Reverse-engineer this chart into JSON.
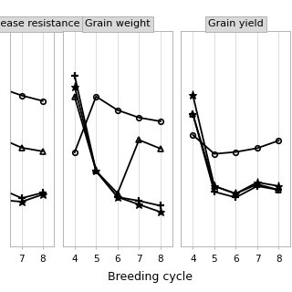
{
  "bg_color": "#FFFFFF",
  "grid_color": "#DDDDDD",
  "line_color": "#000000",
  "title_bg": "#D9D9D9",
  "xlabel": "Breeding cycle",
  "xlabel_fontsize": 9,
  "tick_fontsize": 7.5,
  "title_fontsize": 8,
  "panels": [
    {
      "title": "Disease resistance",
      "xticks": [
        7,
        8
      ],
      "xlim": [
        6.45,
        8.55
      ],
      "ylim": [
        0.28,
        0.88
      ],
      "series": {
        "circle": {
          "x": [
            6,
            7,
            8
          ],
          "y": [
            0.72,
            0.7,
            0.685
          ]
        },
        "triangle": {
          "x": [
            6,
            7,
            8
          ],
          "y": [
            0.58,
            0.555,
            0.545
          ]
        },
        "plus": {
          "x": [
            6,
            7,
            8
          ],
          "y": [
            0.44,
            0.415,
            0.43
          ]
        },
        "star": {
          "x": [
            6,
            7,
            8
          ],
          "y": [
            0.41,
            0.405,
            0.425
          ]
        }
      }
    },
    {
      "title": "Grain weight",
      "xticks": [
        4,
        5,
        6,
        7,
        8
      ],
      "xlim": [
        3.45,
        8.55
      ],
      "ylim": [
        0.13,
        1.0
      ],
      "series": {
        "circle": {
          "x": [
            4,
            5,
            6,
            7,
            8
          ],
          "y": [
            0.51,
            0.735,
            0.68,
            0.65,
            0.635
          ]
        },
        "triangle": {
          "x": [
            4,
            5,
            6,
            7,
            8
          ],
          "y": [
            0.735,
            0.435,
            0.345,
            0.56,
            0.525
          ]
        },
        "plus": {
          "x": [
            4,
            5,
            6,
            7,
            8
          ],
          "y": [
            0.82,
            0.435,
            0.33,
            0.315,
            0.295
          ]
        },
        "star": {
          "x": [
            4,
            5,
            6,
            7,
            8
          ],
          "y": [
            0.775,
            0.435,
            0.33,
            0.3,
            0.27
          ]
        }
      }
    },
    {
      "title": "Grain yield",
      "xticks": [
        4,
        5,
        6,
        7,
        8
      ],
      "xlim": [
        3.45,
        8.55
      ],
      "ylim": [
        0.25,
        0.82
      ],
      "series": {
        "circle": {
          "x": [
            4,
            5,
            6,
            7,
            8
          ],
          "y": [
            0.545,
            0.495,
            0.5,
            0.51,
            0.53
          ]
        },
        "triangle": {
          "x": [
            4,
            5,
            6,
            7,
            8
          ],
          "y": [
            0.6,
            0.41,
            0.39,
            0.415,
            0.4
          ]
        },
        "plus": {
          "x": [
            4,
            5,
            6,
            7,
            8
          ],
          "y": [
            0.6,
            0.395,
            0.38,
            0.41,
            0.4
          ]
        },
        "star": {
          "x": [
            4,
            5,
            6,
            7,
            8
          ],
          "y": [
            0.65,
            0.41,
            0.39,
            0.42,
            0.41
          ]
        }
      }
    }
  ]
}
